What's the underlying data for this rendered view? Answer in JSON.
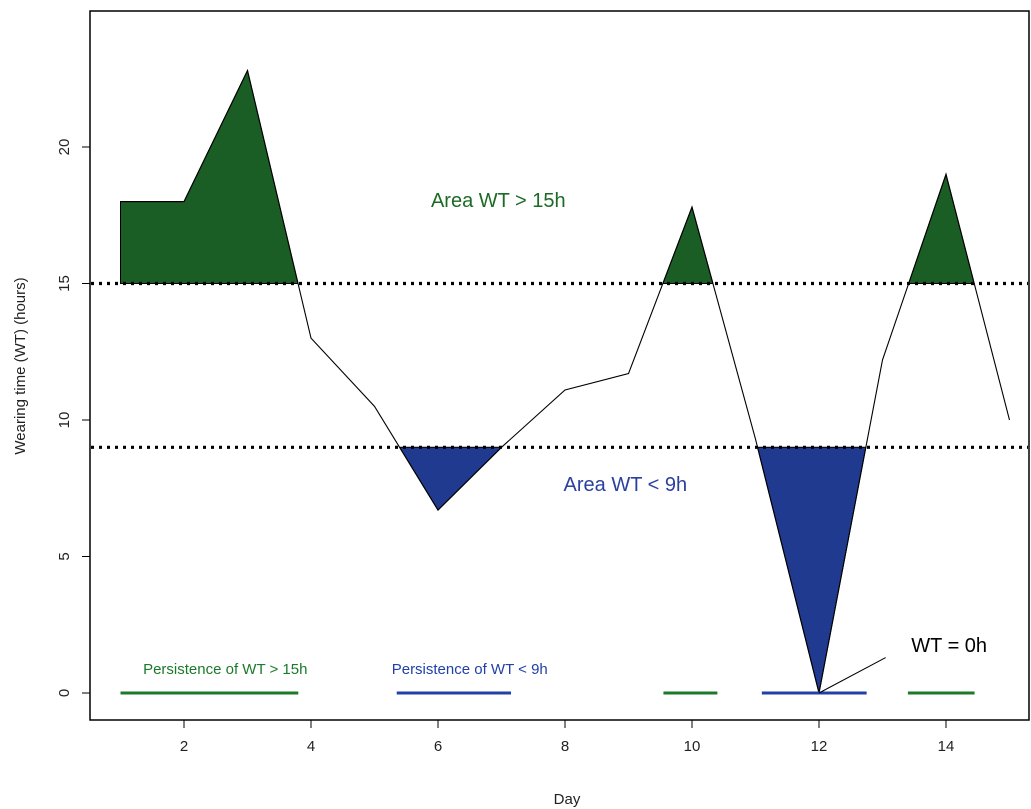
{
  "chart_data": {
    "type": "line",
    "title": "",
    "xlabel": "Day",
    "ylabel": "Wearing time (WT) (hours)",
    "xlim": [
      0.5,
      15.1
    ],
    "ylim": [
      -1,
      25
    ],
    "x_ticks": [
      2,
      4,
      6,
      8,
      10,
      12,
      14
    ],
    "y_ticks": [
      0,
      5,
      10,
      15,
      20
    ],
    "grid": false,
    "series": [
      {
        "x": [
          1,
          2,
          3,
          4,
          5,
          6,
          7,
          8,
          9,
          10,
          11,
          12,
          13,
          14,
          15
        ],
        "y": [
          18,
          18,
          22.8,
          13,
          10.5,
          6.7,
          9,
          11.1,
          11.7,
          17.8,
          9.3,
          0,
          12.2,
          19,
          10
        ],
        "color": "#000000"
      }
    ],
    "thresholds": [
      {
        "y": 15,
        "style": "dotted",
        "color": "#000000"
      },
      {
        "y": 9,
        "style": "dotted",
        "color": "#000000"
      }
    ],
    "fill_above": {
      "y": 15,
      "color": "#1b5e25"
    },
    "fill_below": {
      "y": 9,
      "color": "#1f3a8f"
    },
    "persistence_segments": [
      {
        "x": [
          1,
          3.8
        ],
        "y": 0,
        "color": "#1b7a2a"
      },
      {
        "x": [
          5.35,
          7.15
        ],
        "y": 0,
        "color": "#2240a8"
      },
      {
        "x": [
          9.55,
          10.4
        ],
        "y": 0,
        "color": "#1b7a2a"
      },
      {
        "x": [
          11.1,
          12.75
        ],
        "y": 0,
        "color": "#2240a8"
      },
      {
        "x": [
          13.4,
          14.45
        ],
        "y": 0,
        "color": "#1b7a2a"
      }
    ],
    "annotations": [
      {
        "text": "Area WT > 15h",
        "x": 6.95,
        "y": 18,
        "color": "#1b6b25",
        "size": "big"
      },
      {
        "text": "Area WT < 9h",
        "x": 8.95,
        "y": 7.6,
        "color": "#2a3f9e",
        "size": "big"
      },
      {
        "text": "WT = 0h",
        "x": 14.05,
        "y": 1.7,
        "color": "#000000",
        "size": "big"
      },
      {
        "text": "Persistence of WT > 15h",
        "x": 2.65,
        "y": 0.85,
        "color": "#1b7a2a",
        "size": "small"
      },
      {
        "text": "Persistence of WT < 9h",
        "x": 6.5,
        "y": 0.85,
        "color": "#2240a8",
        "size": "small"
      }
    ],
    "pointer_line": {
      "from": [
        12,
        0
      ],
      "to": [
        13.05,
        1.3
      ]
    }
  }
}
